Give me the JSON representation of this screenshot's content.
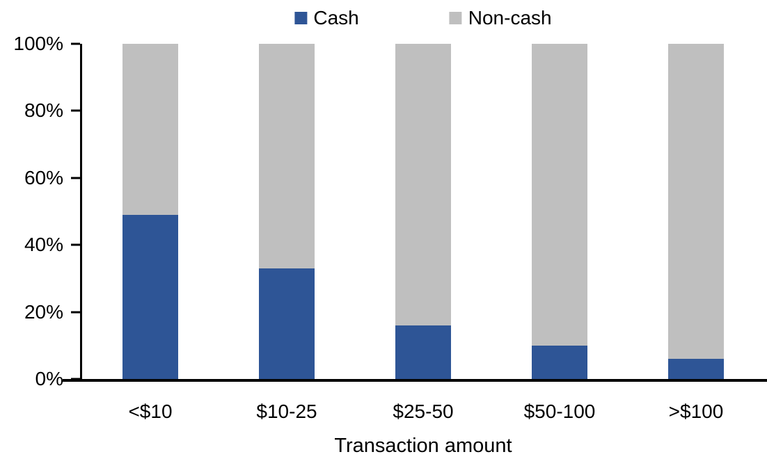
{
  "chart_data": {
    "type": "bar",
    "stacked": true,
    "percent_stacked": true,
    "categories": [
      "<$10",
      "$10-25",
      "$25-50",
      "$50-100",
      ">$100"
    ],
    "series": [
      {
        "name": "Cash",
        "color": "#2E5596",
        "values": [
          49,
          33,
          16,
          10,
          6
        ]
      },
      {
        "name": "Non-cash",
        "color": "#BFBFBF",
        "values": [
          51,
          67,
          84,
          90,
          94
        ]
      }
    ],
    "title": "",
    "xlabel": "Transaction amount",
    "ylabel": "",
    "ylim": [
      0,
      100
    ],
    "yticklabels": [
      "0%",
      "20%",
      "40%",
      "60%",
      "80%",
      "100%"
    ],
    "legend_position": "top-center",
    "grid": false,
    "axis_color": "#000000",
    "background_color": "#FFFFFF"
  }
}
